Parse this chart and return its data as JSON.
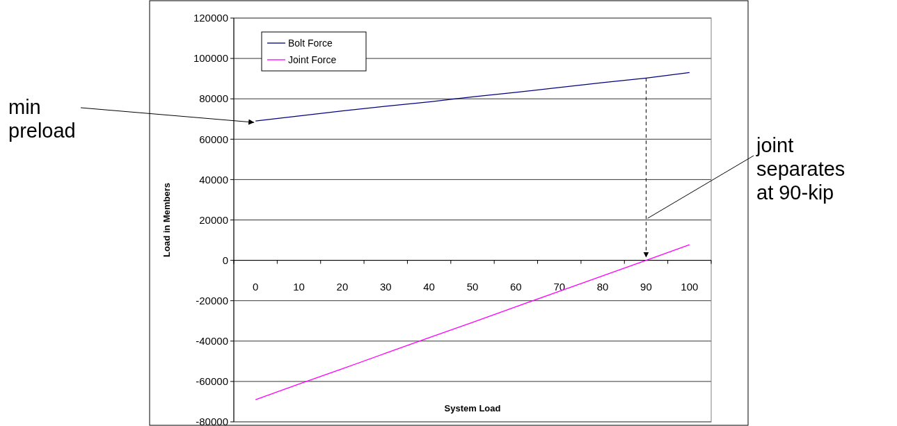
{
  "chart_data": {
    "type": "line",
    "xlabel": "System Load",
    "ylabel": "Load in Members",
    "categories": [
      "0",
      "10",
      "20",
      "30",
      "40",
      "50",
      "60",
      "70",
      "80",
      "90",
      "100"
    ],
    "series": [
      {
        "name": "Bolt Force",
        "color": "#000080",
        "values": [
          69000,
          71500,
          74000,
          76300,
          78500,
          81000,
          83200,
          85600,
          88000,
          90300,
          93000
        ]
      },
      {
        "name": "Joint Force",
        "color": "#ff00ff",
        "values": [
          -69000,
          -61300,
          -53700,
          -46000,
          -38300,
          -30700,
          -23000,
          -15300,
          -7700,
          0,
          7700
        ]
      }
    ],
    "ylim": [
      -80000,
      120000
    ],
    "yticks": [
      -80000,
      -60000,
      -40000,
      -20000,
      0,
      20000,
      40000,
      60000,
      80000,
      100000,
      120000
    ],
    "grid": "y",
    "legend": "top left",
    "marker": "none",
    "line_style": "solid",
    "annotations": [
      {
        "text": "min preload",
        "x": "0",
        "y": 69000
      },
      "joint separates at 90-kip"
    ]
  }
}
